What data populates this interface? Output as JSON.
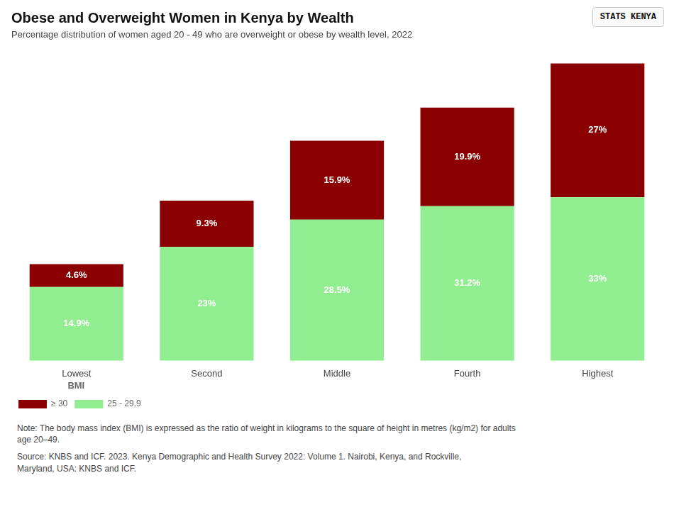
{
  "chart_data": {
    "type": "bar",
    "title": "Obese and Overweight Women in Kenya by Wealth",
    "subtitle": "Percentage distribution of women aged 20 - 49 who are overweight or obese by wealth level, 2022",
    "categories": [
      "Lowest",
      "Second",
      "Middle",
      "Fourth",
      "Highest"
    ],
    "series": [
      {
        "name": "25 - 29.9",
        "color": "#90EE90",
        "values": [
          14.9,
          23.0,
          28.5,
          31.2,
          33.0
        ],
        "value_labels": [
          "14.9%",
          "23%",
          "28.5%",
          "31.2%",
          "33%"
        ]
      },
      {
        "name": "≥ 30",
        "color": "#8B0000",
        "values": [
          4.6,
          9.3,
          15.9,
          19.9,
          27.0
        ],
        "value_labels": [
          "4.6%",
          "9.3%",
          "15.9%",
          "19.9%",
          "27%"
        ]
      }
    ],
    "stacked": true,
    "ylim": [
      0,
      62
    ],
    "tick_labels": "x",
    "grid": false,
    "data_labels": true,
    "legend": "bottom",
    "legend_title": "BMI",
    "note": "Note: The body mass index (BMI) is expressed as the ratio of weight in kilograms to the square of height in metres (kg/m2) for adults\nage 20–49.",
    "source": "Source: KNBS and ICF. 2023. Kenya Demographic and Health Survey 2022: Volume 1. Nairobi, Kenya, and Rockville,\nMaryland, USA: KNBS and ICF.",
    "logo": "STATS KENYA"
  }
}
